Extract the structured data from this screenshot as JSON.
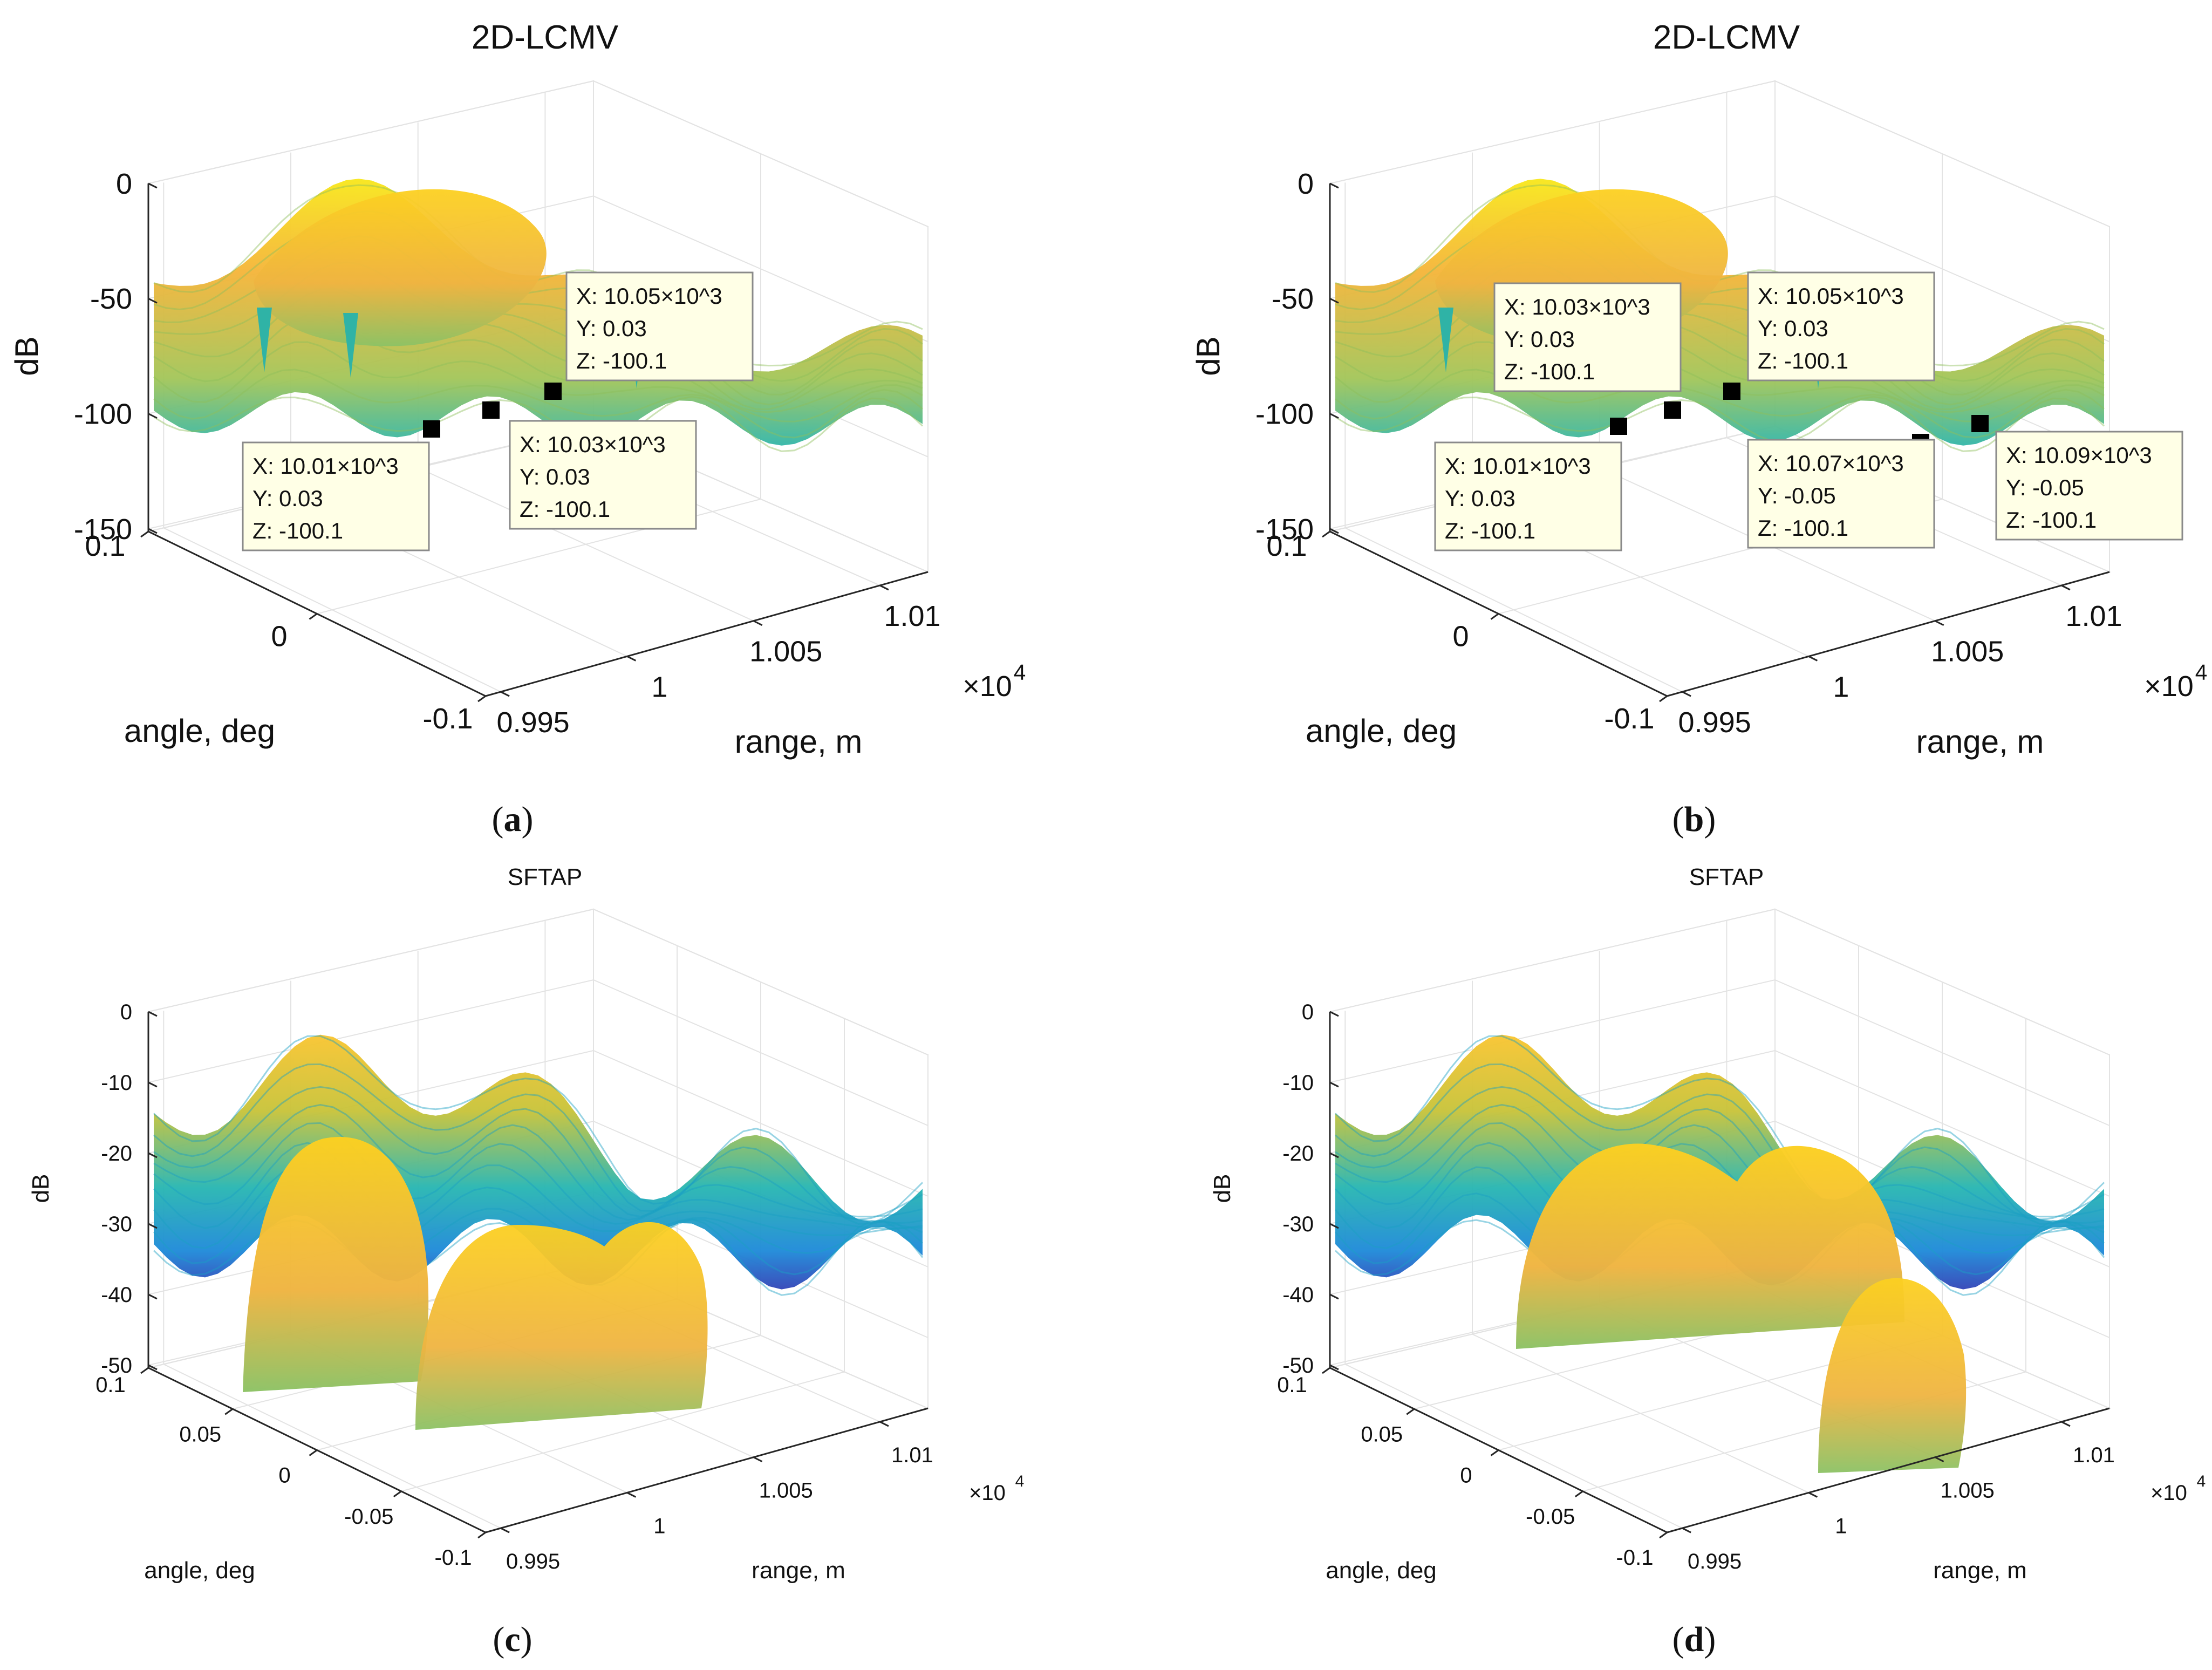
{
  "figure": {
    "panels": [
      {
        "id": "a",
        "caption": {
          "open": "(",
          "letter": "a",
          "close": ")"
        }
      },
      {
        "id": "b",
        "caption": {
          "open": "(",
          "letter": "b",
          "close": ")"
        }
      },
      {
        "id": "c",
        "caption": {
          "open": "(",
          "letter": "c",
          "close": ")"
        }
      },
      {
        "id": "d",
        "caption": {
          "open": "(",
          "letter": "d",
          "close": ")"
        }
      }
    ]
  },
  "chart_data": [
    {
      "panel": "a",
      "type": "surface",
      "title": "2D-LCMV",
      "xlabel": "range, m",
      "ylabel": "angle, deg",
      "zlabel": "dB",
      "x_range": [
        9950,
        10100
      ],
      "y_range": [
        -0.1,
        0.1
      ],
      "z_range": [
        -150,
        0
      ],
      "x_ticks": [
        "0.995",
        "1",
        "1.005",
        "1.01"
      ],
      "x_exponent": {
        "base": "×10",
        "power": "4"
      },
      "y_ticks": [
        "0.1",
        "0",
        "-0.1"
      ],
      "z_ticks": [
        "0",
        "-50",
        "-100",
        "-150"
      ],
      "colormap": "parula",
      "datatips": [
        {
          "x": "X: 10.01×10^3",
          "y": "Y: 0.03",
          "z": "Z: -100.1"
        },
        {
          "x": "X: 10.03×10^3",
          "y": "Y: 0.03",
          "z": "Z: -100.1"
        },
        {
          "x": "X: 10.05×10^3",
          "y": "Y: 0.03",
          "z": "Z: -100.1"
        }
      ]
    },
    {
      "panel": "b",
      "type": "surface",
      "title": "2D-LCMV",
      "xlabel": "range, m",
      "ylabel": "angle, deg",
      "zlabel": "dB",
      "x_range": [
        9950,
        10100
      ],
      "y_range": [
        -0.1,
        0.1
      ],
      "z_range": [
        -150,
        0
      ],
      "x_ticks": [
        "0.995",
        "1",
        "1.005",
        "1.01"
      ],
      "x_exponent": {
        "base": "×10",
        "power": "4"
      },
      "y_ticks": [
        "0.1",
        "0",
        "-0.1"
      ],
      "z_ticks": [
        "0",
        "-50",
        "-100",
        "-150"
      ],
      "colormap": "parula",
      "datatips": [
        {
          "x": "X: 10.01×10^3",
          "y": "Y: 0.03",
          "z": "Z: -100.1"
        },
        {
          "x": "X: 10.03×10^3",
          "y": "Y: 0.03",
          "z": "Z: -100.1"
        },
        {
          "x": "X: 10.05×10^3",
          "y": "Y: 0.03",
          "z": "Z: -100.1"
        },
        {
          "x": "X: 10.07×10^3",
          "y": "Y: -0.05",
          "z": "Z: -100.1"
        },
        {
          "x": "X: 10.09×10^3",
          "y": "Y: -0.05",
          "z": "Z: -100.1"
        }
      ]
    },
    {
      "panel": "c",
      "type": "surface",
      "title": "SFTAP",
      "xlabel": "range, m",
      "ylabel": "angle, deg",
      "zlabel": "dB",
      "x_range": [
        9950,
        10100
      ],
      "y_range": [
        -0.1,
        0.1
      ],
      "z_range": [
        -50,
        0
      ],
      "x_ticks": [
        "0.995",
        "1",
        "1.005",
        "1.01"
      ],
      "x_exponent": {
        "base": "×10",
        "power": "4"
      },
      "y_ticks": [
        "0.1",
        "0.05",
        "0",
        "-0.05",
        "-0.1"
      ],
      "z_ticks": [
        "0",
        "-10",
        "-20",
        "-30",
        "-40",
        "-50"
      ],
      "colormap": "parula",
      "datatips": []
    },
    {
      "panel": "d",
      "type": "surface",
      "title": "SFTAP",
      "xlabel": "range, m",
      "ylabel": "angle, deg",
      "zlabel": "dB",
      "x_range": [
        9950,
        10100
      ],
      "y_range": [
        -0.1,
        0.1
      ],
      "z_range": [
        -50,
        0
      ],
      "x_ticks": [
        "0.995",
        "1",
        "1.005",
        "1.01"
      ],
      "x_exponent": {
        "base": "×10",
        "power": "4"
      },
      "y_ticks": [
        "0.1",
        "0.05",
        "0",
        "-0.05",
        "-0.1"
      ],
      "z_ticks": [
        "0",
        "-10",
        "-20",
        "-30",
        "-40",
        "-50"
      ],
      "colormap": "parula",
      "datatips": []
    }
  ]
}
